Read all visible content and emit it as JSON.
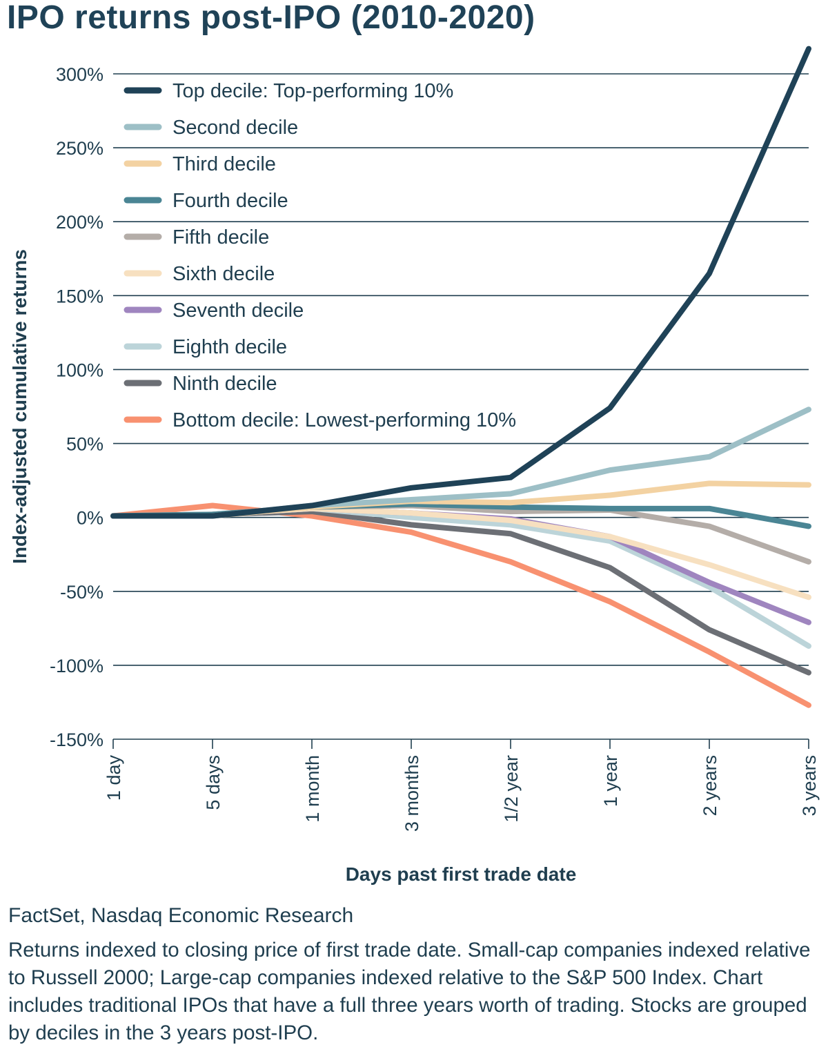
{
  "chart_data": {
    "type": "line",
    "title": "IPO returns post-IPO (2010-2020)",
    "xlabel": "Days past first trade date",
    "ylabel": "Index-adjusted cumulative returns",
    "categories": [
      "1 day",
      "5 days",
      "1 month",
      "3 months",
      "1/2 year",
      "1 year",
      "2 years",
      "3 years"
    ],
    "ylim": [
      -150,
      300
    ],
    "yticks": [
      300,
      250,
      200,
      150,
      100,
      50,
      0,
      -50,
      -100,
      -150
    ],
    "ytick_labels": [
      "300%",
      "250%",
      "200%",
      "150%",
      "100%",
      "50%",
      "0%",
      "-50%",
      "-100%",
      "-150%"
    ],
    "grid": "horizontal",
    "legend_position": "top-left",
    "series": [
      {
        "name": "Top decile: Top-performing 10%",
        "color": "#1f4257",
        "values": [
          1,
          1,
          8,
          20,
          27,
          74,
          165,
          317
        ]
      },
      {
        "name": "Second decile",
        "color": "#9dbfc6",
        "values": [
          1,
          1,
          8,
          12,
          16,
          32,
          41,
          73
        ]
      },
      {
        "name": "Third decile",
        "color": "#f3d2a2",
        "values": [
          1,
          1,
          7,
          11,
          10,
          15,
          23,
          22
        ]
      },
      {
        "name": "Fourth decile",
        "color": "#4a8594",
        "values": [
          1,
          2,
          7,
          9,
          7,
          6,
          6,
          -6
        ]
      },
      {
        "name": "Fifth decile",
        "color": "#b4ada8",
        "values": [
          1,
          2,
          7,
          8,
          4,
          5,
          -6,
          -30
        ]
      },
      {
        "name": "Sixth decile",
        "color": "#f7e0c0",
        "values": [
          1,
          2,
          6,
          3,
          -2,
          -13,
          -32,
          -54
        ]
      },
      {
        "name": "Seventh decile",
        "color": "#9f85bf",
        "values": [
          1,
          2,
          6,
          3,
          -1,
          -13,
          -44,
          -71
        ]
      },
      {
        "name": "Eighth decile",
        "color": "#bcd4d9",
        "values": [
          1,
          2,
          6,
          0,
          -5,
          -16,
          -47,
          -87
        ]
      },
      {
        "name": "Ninth decile",
        "color": "#6c6f75",
        "values": [
          1,
          2,
          4,
          -5,
          -11,
          -34,
          -76,
          -105
        ]
      },
      {
        "name": "Bottom decile: Lowest-performing 10%",
        "color": "#f89170",
        "values": [
          1,
          8,
          1,
          -10,
          -30,
          -57,
          -91,
          -127
        ]
      }
    ]
  },
  "footer": {
    "source": "FactSet, Nasdaq Economic Research",
    "note": "Returns indexed to closing price of first trade date. Small-cap companies indexed relative to Russell 2000; Large-cap companies indexed relative to the S&P 500 Index. Chart includes traditional IPOs that have a full three years worth of trading. Stocks are grouped by deciles in the 3 years post-IPO."
  }
}
